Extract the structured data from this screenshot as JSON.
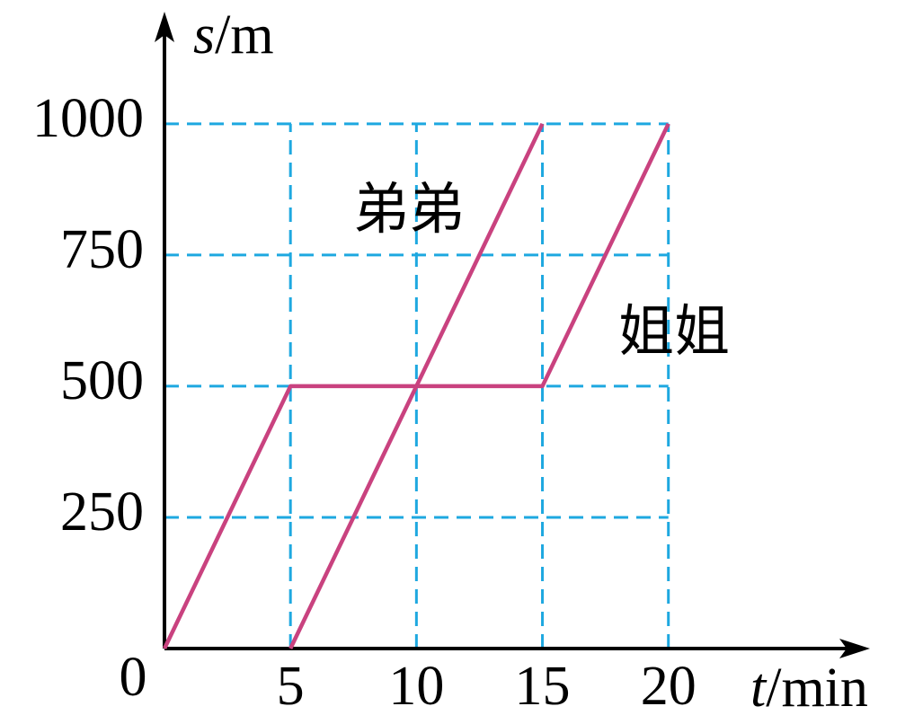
{
  "chart_data": {
    "type": "line",
    "x_label_var": "t",
    "x_label_unit": "/min",
    "y_label_var": "s",
    "y_label_unit": "/m",
    "xlim": [
      0,
      28
    ],
    "ylim": [
      0,
      1200
    ],
    "xticks": [
      0,
      5,
      10,
      15,
      20
    ],
    "yticks": [
      250,
      500,
      750,
      1000
    ],
    "grid": true,
    "series": [
      {
        "name": "弟弟",
        "color": "#c9427f",
        "x": [
          5,
          15
        ],
        "values": [
          0,
          1000
        ]
      },
      {
        "name": "姐姐",
        "color": "#c9427f",
        "x": [
          0,
          5,
          15,
          20
        ],
        "values": [
          0,
          500,
          500,
          1000
        ]
      }
    ]
  }
}
